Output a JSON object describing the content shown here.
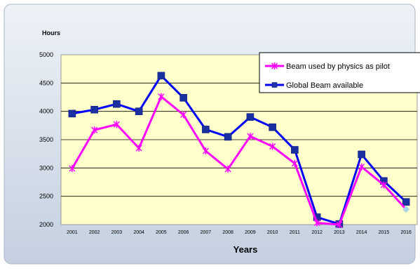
{
  "chart_data": {
    "type": "line",
    "title": "",
    "ylabel": "Hours",
    "xlabel": "Years",
    "ylim": [
      2000,
      5000
    ],
    "yticks": [
      2000,
      2500,
      3000,
      3500,
      4000,
      4500,
      5000
    ],
    "grid": true,
    "legend_position": "top-right",
    "categories": [
      "2001",
      "2002",
      "2003",
      "2004",
      "2005",
      "2006",
      "2007",
      "2008",
      "2009",
      "2010",
      "2011",
      "2012",
      "2013",
      "2014",
      "2015",
      "2016"
    ],
    "series": [
      {
        "name": "Beam used by physics as pilot",
        "color": "#ff00ff",
        "marker": "star",
        "values": [
          2990,
          3670,
          3770,
          3350,
          4260,
          3940,
          3300,
          2980,
          3560,
          3380,
          3080,
          2030,
          2000,
          3020,
          2700,
          2270
        ]
      },
      {
        "name": "Global Beam available",
        "color": "#0000ff",
        "marker": "square",
        "values": [
          3960,
          4030,
          4130,
          4000,
          4630,
          4240,
          3680,
          3550,
          3900,
          3720,
          3320,
          2130,
          2010,
          3240,
          2770,
          2400
        ]
      }
    ]
  },
  "colors": {
    "plot_background": "#ffffcc",
    "frame_background_top": "#eef2f7",
    "frame_background_bottom": "#c4d0e0",
    "square_marker_fill": "#1a2fa0",
    "last_pilot_marker": "#a8d8e8"
  }
}
